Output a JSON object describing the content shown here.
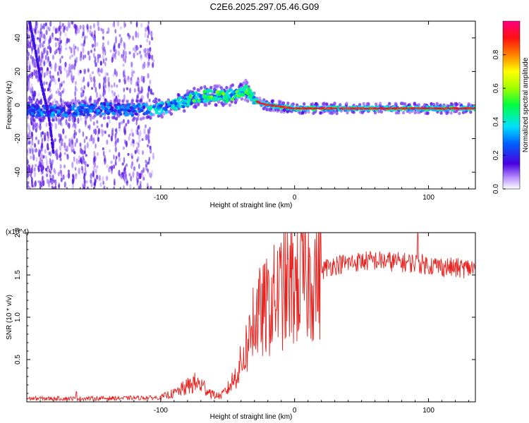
{
  "title": "C2E6.2025.297.05.46.G09",
  "colors": {
    "line": "#e8231f",
    "axis": "#000000",
    "background": "#ffffff"
  },
  "chart_data": [
    {
      "type": "heatmap",
      "xlabel": "Height of straight line (km)",
      "ylabel": "Frequency (Hz)",
      "xlim": [
        -200,
        135
      ],
      "ylim": [
        -50,
        50
      ],
      "xticks": [
        -100,
        0,
        100
      ],
      "xtick_labels": [
        "-100",
        "0",
        "100"
      ],
      "yticks": [
        -40,
        -20,
        0,
        20,
        40
      ],
      "ytick_labels": [
        "-40",
        "-20",
        "0",
        "20",
        "40"
      ],
      "colorbar": {
        "label": "Normalized spectral amplitude",
        "range": [
          0,
          1
        ],
        "ticks": [
          0.0,
          0.2,
          0.4,
          0.6,
          0.8
        ],
        "tick_labels": [
          "0.0",
          "0.2",
          "0.4",
          "0.6",
          "0.8"
        ]
      },
      "ridge": {
        "x": [
          -200,
          -180,
          -160,
          -140,
          -120,
          -100,
          -90,
          -80,
          -70,
          -60,
          -50,
          -45,
          -40,
          -36,
          -33,
          -30,
          -25,
          -20,
          -10,
          0,
          10,
          20,
          40,
          60,
          80,
          100,
          120,
          135
        ],
        "freq": [
          -3,
          -4,
          -3,
          -2,
          -3,
          -2,
          0,
          3,
          5,
          6,
          5,
          7,
          8,
          9,
          6,
          3,
          1,
          0,
          -1,
          -2,
          -2,
          -2,
          -2,
          -2,
          -2,
          -2,
          -2,
          -2
        ]
      },
      "steep_trace": {
        "x": [
          -198,
          -193,
          -189,
          -186,
          -183,
          -180
        ],
        "freq": [
          50,
          30,
          12,
          2,
          -10,
          -29
        ]
      }
    },
    {
      "type": "line",
      "xlabel": "Height of straight line (km)",
      "ylabel": "SNR (10 * v/v)",
      "y_multiplier": "(x10^4)",
      "xlim": [
        -200,
        135
      ],
      "ylim": [
        0,
        2.0
      ],
      "xticks": [
        -100,
        0,
        100
      ],
      "xtick_labels": [
        "-100",
        "0",
        "100"
      ],
      "yticks": [
        0.5,
        1.0,
        1.5,
        2.0
      ],
      "ytick_labels": [
        "0.5",
        "1.0",
        "1.5",
        "2.0"
      ],
      "envelope": {
        "x": [
          -200,
          -150,
          -100,
          -95,
          -90,
          -85,
          -80,
          -75,
          -70,
          -65,
          -60,
          -55,
          -50,
          -45,
          -40,
          -35,
          -30,
          -28,
          -25,
          -20,
          -15,
          -10,
          -5,
          0,
          5,
          10,
          15,
          20,
          25,
          30,
          40,
          50,
          60,
          70,
          80,
          90,
          100,
          110,
          120,
          135
        ],
        "y": [
          0.04,
          0.04,
          0.05,
          0.08,
          0.1,
          0.14,
          0.18,
          0.22,
          0.2,
          0.14,
          0.08,
          0.07,
          0.15,
          0.28,
          0.45,
          0.7,
          0.9,
          1.0,
          1.05,
          1.12,
          1.22,
          1.3,
          1.35,
          1.38,
          1.42,
          1.45,
          1.52,
          1.55,
          1.6,
          1.62,
          1.64,
          1.66,
          1.67,
          1.66,
          1.65,
          1.64,
          1.62,
          1.6,
          1.58,
          1.58
        ]
      },
      "peaks": [
        {
          "x": 92,
          "y": 1.99
        },
        {
          "x": -163,
          "y": 0.12
        },
        {
          "x": -31,
          "y": 1.35
        }
      ]
    }
  ]
}
